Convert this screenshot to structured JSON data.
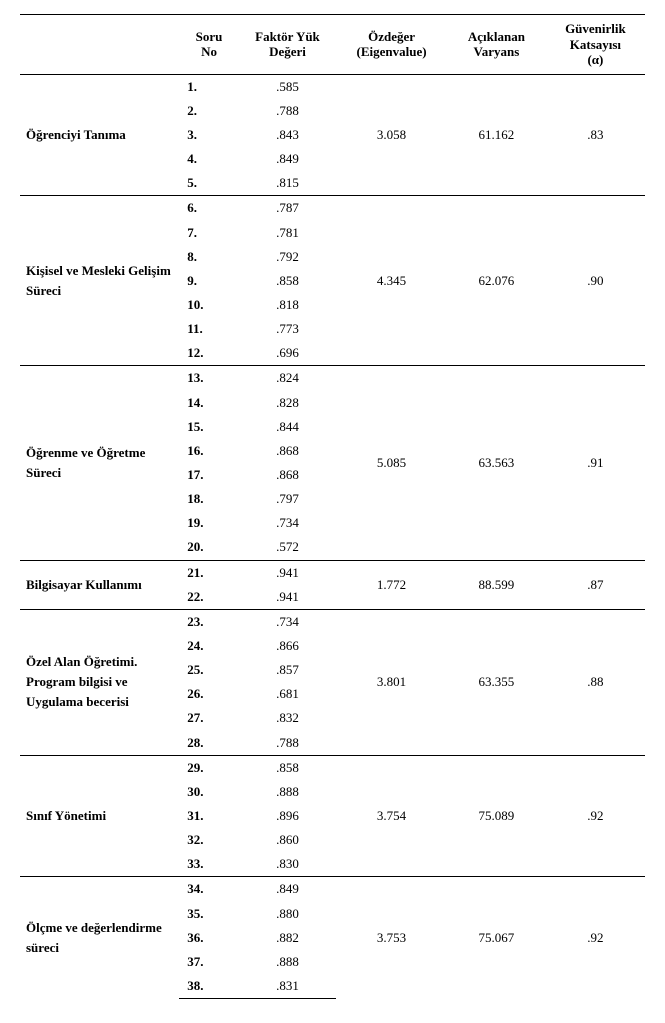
{
  "columns": {
    "c1": "",
    "c2_l1": "Soru",
    "c2_l2": "No",
    "c3_l1": "Faktör Yük",
    "c3_l2": "Değeri",
    "c4_l1": "Özdeğer",
    "c4_l2": "(Eigenvalue)",
    "c5_l1": "Açıklanan",
    "c5_l2": "Varyans",
    "c6_l1": "Güvenirlik",
    "c6_l2": "Katsayısı",
    "c6_l3": "(α)"
  },
  "factors": [
    {
      "name": "Öğrenciyi Tanıma",
      "eig": "3.058",
      "var": "61.162",
      "rel": ".83",
      "items": [
        {
          "no": "1.",
          "load": ".585"
        },
        {
          "no": "2.",
          "load": ".788"
        },
        {
          "no": "3.",
          "load": ".843"
        },
        {
          "no": "4.",
          "load": ".849"
        },
        {
          "no": "5.",
          "load": ".815"
        }
      ]
    },
    {
      "name": "Kişisel ve Mesleki Gelişim Süreci",
      "eig": "4.345",
      "var": "62.076",
      "rel": ".90",
      "items": [
        {
          "no": "6.",
          "load": ".787"
        },
        {
          "no": "7.",
          "load": ".781"
        },
        {
          "no": "8.",
          "load": ".792"
        },
        {
          "no": "9.",
          "load": ".858"
        },
        {
          "no": "10.",
          "load": ".818"
        },
        {
          "no": "11.",
          "load": ".773"
        },
        {
          "no": "12.",
          "load": ".696"
        }
      ]
    },
    {
      "name": "Öğrenme ve Öğretme Süreci",
      "eig": "5.085",
      "var": "63.563",
      "rel": ".91",
      "items": [
        {
          "no": "13.",
          "load": ".824"
        },
        {
          "no": "14.",
          "load": ".828"
        },
        {
          "no": "15.",
          "load": ".844"
        },
        {
          "no": "16.",
          "load": ".868"
        },
        {
          "no": "17.",
          "load": ".868"
        },
        {
          "no": "18.",
          "load": ".797"
        },
        {
          "no": "19.",
          "load": ".734"
        },
        {
          "no": "20.",
          "load": ".572"
        }
      ]
    },
    {
      "name": "Bilgisayar Kullanımı",
      "eig": "1.772",
      "var": "88.599",
      "rel": ".87",
      "items": [
        {
          "no": "21.",
          "load": ".941"
        },
        {
          "no": "22.",
          "load": ".941"
        }
      ]
    },
    {
      "name": "Özel Alan Öğretimi. Program bilgisi ve Uygulama becerisi",
      "eig": "3.801",
      "var": "63.355",
      "rel": ".88",
      "items": [
        {
          "no": "23.",
          "load": ".734"
        },
        {
          "no": "24.",
          "load": ".866"
        },
        {
          "no": "25.",
          "load": ".857"
        },
        {
          "no": "26.",
          "load": ".681"
        },
        {
          "no": "27.",
          "load": ".832"
        },
        {
          "no": "28.",
          "load": ".788"
        }
      ]
    },
    {
      "name": "Sınıf Yönetimi",
      "eig": "3.754",
      "var": "75.089",
      "rel": ".92",
      "items": [
        {
          "no": "29.",
          "load": ".858"
        },
        {
          "no": "30.",
          "load": ".888"
        },
        {
          "no": "31.",
          "load": ".896"
        },
        {
          "no": "32.",
          "load": ".860"
        },
        {
          "no": "33.",
          "load": ".830"
        }
      ]
    },
    {
      "name": "Ölçme ve değerlendirme süreci",
      "eig": "3.753",
      "var": "75.067",
      "rel": ".92",
      "items": [
        {
          "no": "34.",
          "load": ".849"
        },
        {
          "no": "35.",
          "load": ".880"
        },
        {
          "no": "36.",
          "load": ".882"
        },
        {
          "no": "37.",
          "load": ".888"
        },
        {
          "no": "38.",
          "load": ".831"
        }
      ]
    }
  ]
}
